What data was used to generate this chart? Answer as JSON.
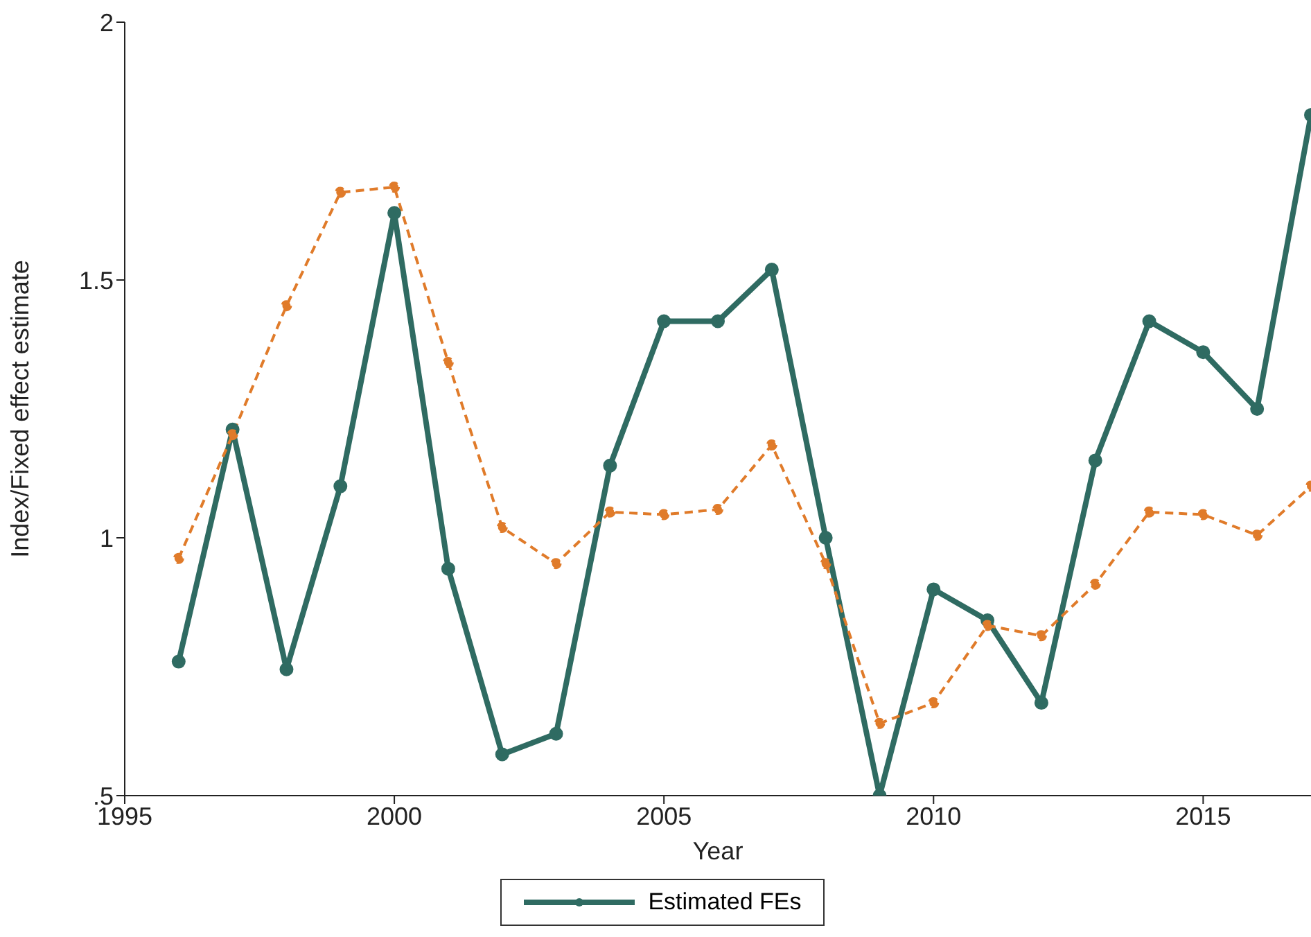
{
  "chart_data": {
    "type": "line",
    "xlabel": "Year",
    "ylabel": "Index/Fixed effect estimate",
    "x": [
      1996,
      1997,
      1998,
      1999,
      2000,
      2001,
      2002,
      2003,
      2004,
      2005,
      2006,
      2007,
      2008,
      2009,
      2010,
      2011,
      2012,
      2013,
      2014,
      2015,
      2016,
      2017
    ],
    "series": [
      {
        "name": "Estimated FEs",
        "color": "#2f6b62",
        "marker": "circle",
        "line_style": "solid",
        "values": [
          0.76,
          1.21,
          0.745,
          1.1,
          1.63,
          0.94,
          0.58,
          0.62,
          1.14,
          1.42,
          1.42,
          1.52,
          1.0,
          0.5,
          0.9,
          0.84,
          0.68,
          1.15,
          1.42,
          1.36,
          1.25,
          1.82
        ]
      },
      {
        "color": "#e07b2a",
        "marker": "circle",
        "line_style": "dashed",
        "values": [
          0.96,
          1.2,
          1.45,
          1.67,
          1.68,
          1.34,
          1.02,
          0.95,
          1.05,
          1.045,
          1.055,
          1.18,
          0.95,
          0.64,
          0.68,
          0.83,
          0.81,
          0.91,
          1.05,
          1.045,
          1.005,
          1.1
        ]
      }
    ],
    "xlim": [
      1995,
      2017
    ],
    "xticks": [
      1995,
      2000,
      2005,
      2010,
      2015
    ],
    "ylim": [
      0.5,
      2
    ],
    "yticks": [
      {
        "value": 0.5,
        "label": ".5"
      },
      1,
      1.5,
      2
    ],
    "grid": false,
    "legend": "bottom"
  }
}
